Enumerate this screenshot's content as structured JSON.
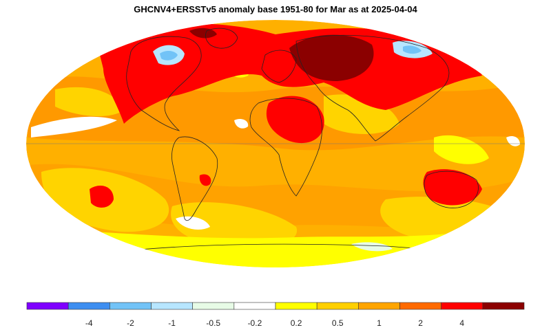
{
  "title": "GHCNV4+ERSSTv5 anomaly base 1951-80 for Mar as at 2025-04-04",
  "legend": {
    "colors": [
      "#7f00ff",
      "#3e8ef0",
      "#72c3f7",
      "#b7e6ff",
      "#e7fbe6",
      "#ffffff",
      "#ffff00",
      "#ffd000",
      "#ffa500",
      "#ff6a00",
      "#ff0000",
      "#8b0000"
    ],
    "tick_labels": [
      "-4",
      "-2",
      "-1",
      "-0.5",
      "-0.2",
      "0.2",
      "0.5",
      "1",
      "2",
      "4"
    ]
  },
  "map": {
    "projection": "mollweide",
    "base_color": "#ffb000"
  }
}
